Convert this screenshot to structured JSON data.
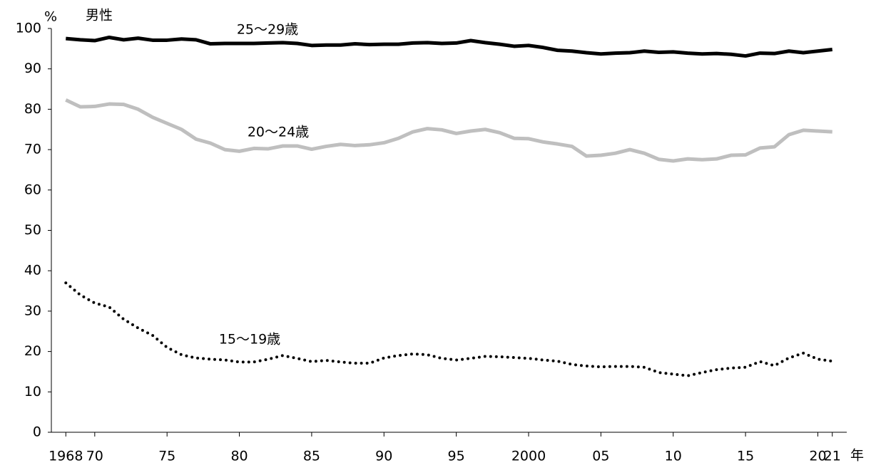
{
  "chart_data": {
    "type": "line",
    "title": "男性",
    "y_unit": "%",
    "x_unit": "年",
    "x": [
      1968,
      1969,
      1970,
      1971,
      1972,
      1973,
      1974,
      1975,
      1976,
      1977,
      1978,
      1979,
      1980,
      1981,
      1982,
      1983,
      1984,
      1985,
      1986,
      1987,
      1988,
      1989,
      1990,
      1991,
      1992,
      1993,
      1994,
      1995,
      1996,
      1997,
      1998,
      1999,
      2000,
      2001,
      2002,
      2003,
      2004,
      2005,
      2006,
      2007,
      2008,
      2009,
      2010,
      2011,
      2012,
      2013,
      2014,
      2015,
      2016,
      2017,
      2018,
      2019,
      2020,
      2021
    ],
    "series": [
      {
        "name": "25～29歳",
        "color": "#000000",
        "dash": "solid",
        "values": [
          97.5,
          97.2,
          97.0,
          97.8,
          97.2,
          97.6,
          97.1,
          97.1,
          97.4,
          97.2,
          96.2,
          96.3,
          96.3,
          96.3,
          96.4,
          96.5,
          96.3,
          95.8,
          95.9,
          95.9,
          96.2,
          96.0,
          96.1,
          96.1,
          96.4,
          96.5,
          96.3,
          96.4,
          97.0,
          96.5,
          96.1,
          95.6,
          95.8,
          95.3,
          94.6,
          94.4,
          94.0,
          93.7,
          93.9,
          94.0,
          94.4,
          94.1,
          94.2,
          93.9,
          93.7,
          93.8,
          93.6,
          93.2,
          93.9,
          93.8,
          94.4,
          94.0,
          94.4,
          94.8
        ]
      },
      {
        "name": "20～24歳",
        "color": "#bfbfbf",
        "dash": "solid",
        "values": [
          82.3,
          80.6,
          80.7,
          81.3,
          81.2,
          80.0,
          78.0,
          76.5,
          75.0,
          72.6,
          71.6,
          70.0,
          69.6,
          70.3,
          70.2,
          70.9,
          70.9,
          70.1,
          70.8,
          71.3,
          71.0,
          71.2,
          71.7,
          72.8,
          74.4,
          75.2,
          74.9,
          74.0,
          74.6,
          75.0,
          74.2,
          72.8,
          72.7,
          71.9,
          71.4,
          70.8,
          68.4,
          68.6,
          69.1,
          70.0,
          69.1,
          67.6,
          67.2,
          67.7,
          67.5,
          67.7,
          68.6,
          68.7,
          70.4,
          70.7,
          73.7,
          74.8,
          74.6,
          74.4
        ]
      },
      {
        "name": "15～19歳",
        "color": "#000000",
        "dash": "dotted",
        "values": [
          37.0,
          34.0,
          32.0,
          31.0,
          28.0,
          25.8,
          24.0,
          21.0,
          19.2,
          18.4,
          18.1,
          17.9,
          17.4,
          17.4,
          18.1,
          19.0,
          18.3,
          17.5,
          17.8,
          17.4,
          17.1,
          17.1,
          18.4,
          19.0,
          19.4,
          19.2,
          18.3,
          17.9,
          18.3,
          18.8,
          18.7,
          18.5,
          18.3,
          17.9,
          17.6,
          16.8,
          16.4,
          16.2,
          16.3,
          16.3,
          16.1,
          14.8,
          14.4,
          14.0,
          14.8,
          15.5,
          15.9,
          16.1,
          17.5,
          16.5,
          18.4,
          19.6,
          18.1,
          17.6
        ]
      }
    ],
    "xlim": [
      1967,
      2022
    ],
    "xticks": [
      1968,
      {
        "value": 1970,
        "label": "70"
      },
      {
        "value": 1975,
        "label": "75"
      },
      {
        "value": 1980,
        "label": "80"
      },
      {
        "value": 1985,
        "label": "85"
      },
      {
        "value": 1990,
        "label": "90"
      },
      {
        "value": 1995,
        "label": "95"
      },
      2000,
      {
        "value": 2005,
        "label": "05"
      },
      {
        "value": 2010,
        "label": "10"
      },
      {
        "value": 2015,
        "label": "15"
      },
      {
        "value": 2020,
        "label": "20"
      },
      {
        "value": 2021,
        "label": "21"
      }
    ],
    "ylim": [
      0,
      100
    ],
    "yticks": [
      0,
      10,
      20,
      30,
      40,
      50,
      60,
      70,
      80,
      90,
      100
    ]
  }
}
